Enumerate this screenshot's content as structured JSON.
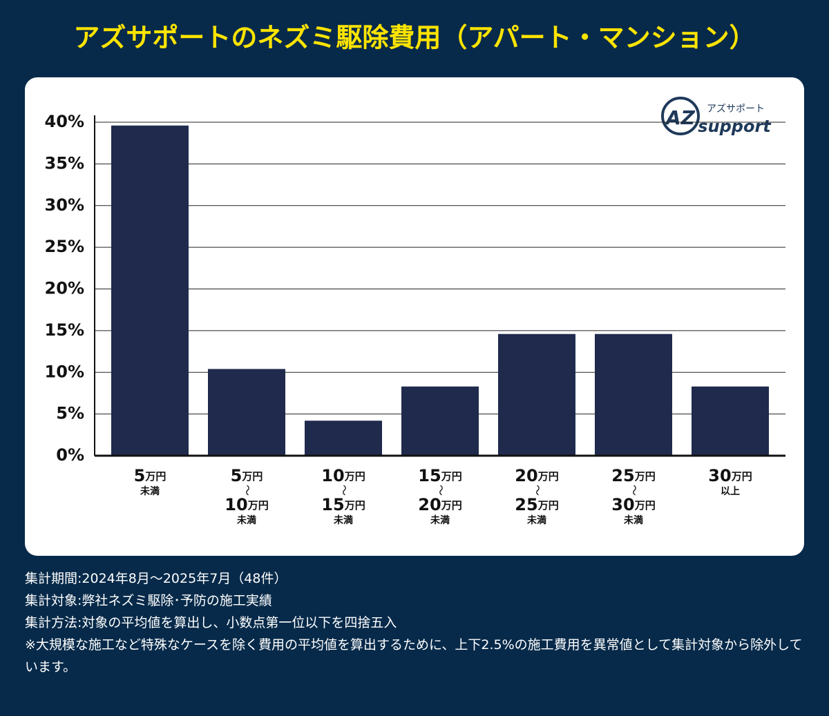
{
  "chart_data": {
    "type": "bar",
    "title": "アズサポートのネズミ駆除費用（アパート・マンション）",
    "logo": {
      "mark": "AZ",
      "kana": "アズサポート",
      "name": "support"
    },
    "categories": [
      [
        "5万円",
        "未満"
      ],
      [
        "5万円",
        "〜",
        "10万円",
        "未満"
      ],
      [
        "10万円",
        "〜",
        "15万円",
        "未満"
      ],
      [
        "15万円",
        "〜",
        "20万円",
        "未満"
      ],
      [
        "20万円",
        "〜",
        "25万円",
        "未満"
      ],
      [
        "25万円",
        "〜",
        "30万円",
        "未満"
      ],
      [
        "30万円",
        "以上"
      ]
    ],
    "values": [
      39.6,
      10.4,
      4.2,
      8.3,
      14.6,
      14.6,
      8.3
    ],
    "color": "#1f2a4d",
    "ylim": [
      0,
      40
    ],
    "yticks": [
      {
        "value": 0,
        "label": "0%"
      },
      {
        "value": 5,
        "label": "5%"
      },
      {
        "value": 10,
        "label": "10%"
      },
      {
        "value": 15,
        "label": "15%"
      },
      {
        "value": 20,
        "label": "20%"
      },
      {
        "value": 25,
        "label": "25%"
      },
      {
        "value": 30,
        "label": "30%"
      },
      {
        "value": 35,
        "label": "35%"
      },
      {
        "value": 40,
        "label": "40%"
      }
    ],
    "grid": true,
    "notes": [
      "集計期間:2024年8月～2025年7月（48件）",
      "集計対象:弊社ネズミ駆除･予防の施工実績",
      "集計方法:対象の平均値を算出し、小数点第一位以下を四捨五入",
      "※大規模な施工など特殊なケースを除く費用の平均値を算出するために、上下2.5%の施工費用を異常値として集計対象から除外しています。"
    ]
  }
}
